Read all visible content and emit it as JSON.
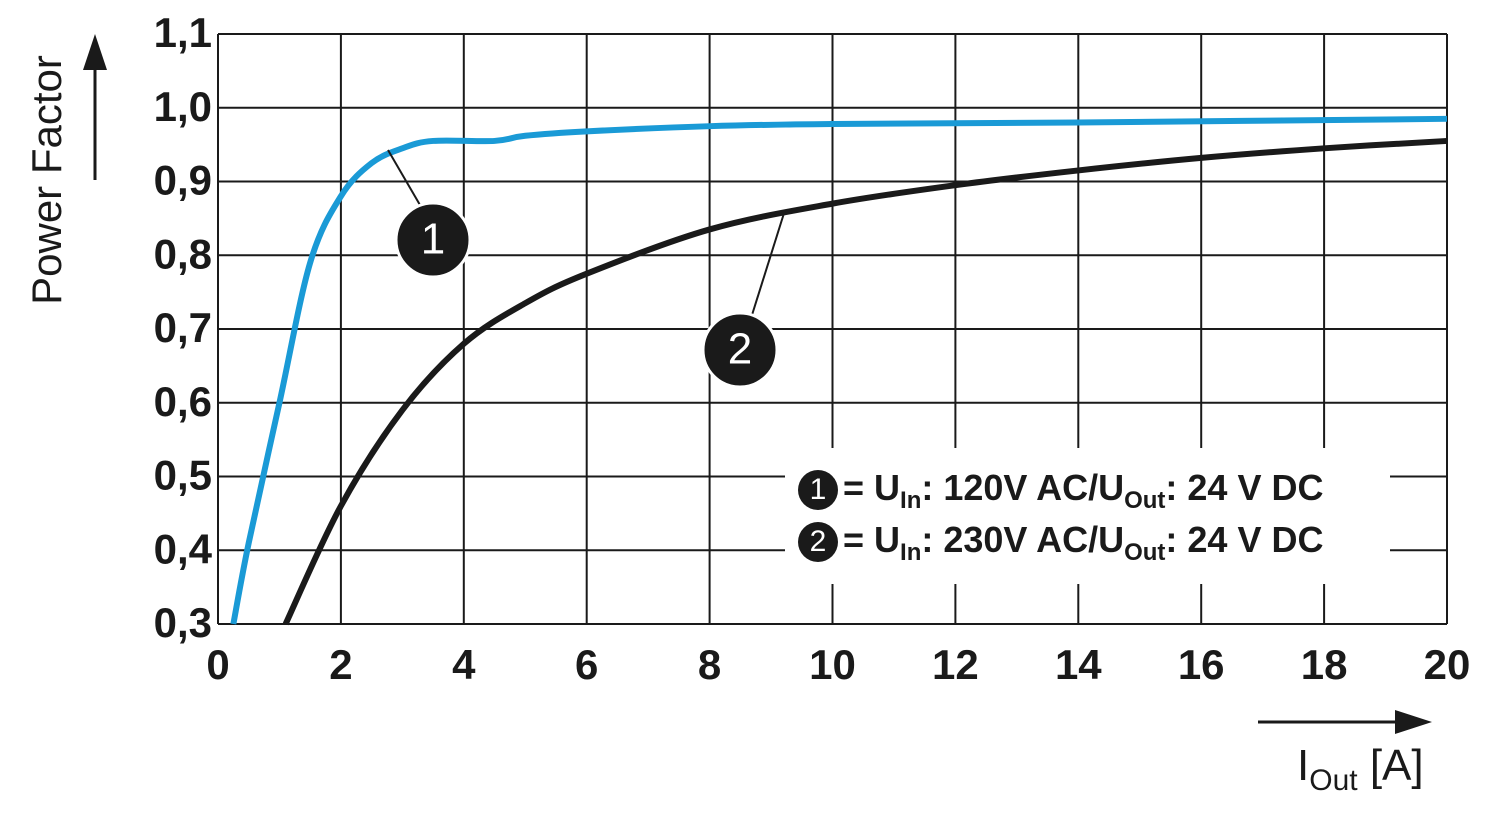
{
  "chart_data": {
    "type": "line",
    "y_label": "Power Factor",
    "x_label_parts": [
      "I",
      "Out",
      " [A]"
    ],
    "xlim": [
      0,
      20
    ],
    "xticks": [
      0,
      2,
      4,
      6,
      8,
      10,
      12,
      14,
      16,
      18,
      20
    ],
    "ylim": [
      0.3,
      1.1
    ],
    "yticks": [
      {
        "value": 0.3,
        "label": "0,3"
      },
      {
        "value": 0.4,
        "label": "0,4"
      },
      {
        "value": 0.5,
        "label": "0,5"
      },
      {
        "value": 0.6,
        "label": "0,6"
      },
      {
        "value": 0.7,
        "label": "0,7"
      },
      {
        "value": 0.8,
        "label": "0,8"
      },
      {
        "value": 0.9,
        "label": "0,9"
      },
      {
        "value": 1.0,
        "label": "1,0"
      },
      {
        "value": 1.1,
        "label": "1,1"
      }
    ],
    "grid": true,
    "series": [
      {
        "label": "1",
        "color": "#1a9ad6",
        "legend_parts": [
          "= U",
          "In",
          ": 120V AC/U",
          "Out",
          ": 24 V DC"
        ],
        "x": [
          0.25,
          0.5,
          1,
          1.5,
          2,
          2.5,
          3,
          3.5,
          4.5,
          5,
          6,
          8,
          10,
          14,
          20
        ],
        "values": [
          0.3,
          0.41,
          0.6,
          0.79,
          0.88,
          0.925,
          0.945,
          0.955,
          0.955,
          0.962,
          0.968,
          0.975,
          0.978,
          0.98,
          0.985
        ]
      },
      {
        "label": "2",
        "color": "#1a1a1a",
        "legend_parts": [
          "= U",
          "In",
          ": 230V AC/U",
          "Out",
          ": 24 V DC"
        ],
        "x": [
          1.1,
          2,
          3,
          4,
          5,
          6,
          8,
          10,
          12,
          14,
          16,
          18,
          20
        ],
        "values": [
          0.3,
          0.46,
          0.59,
          0.68,
          0.735,
          0.775,
          0.835,
          0.87,
          0.895,
          0.915,
          0.932,
          0.945,
          0.955
        ]
      }
    ]
  }
}
